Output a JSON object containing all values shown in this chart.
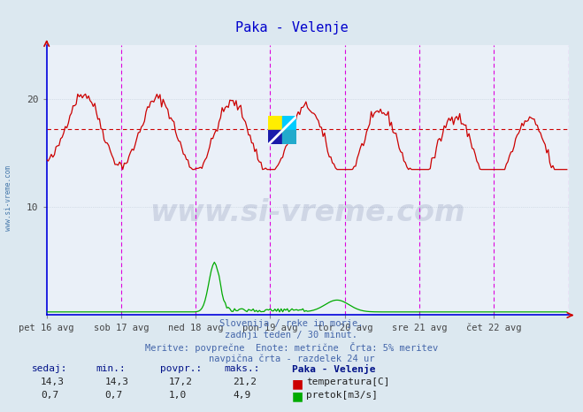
{
  "title": "Paka - Velenje",
  "title_color": "#0000cc",
  "bg_color": "#dce8f0",
  "plot_bg_color": "#eaf0f8",
  "xlabel_ticks": [
    "pet 16 avg",
    "sob 17 avg",
    "ned 18 avg",
    "pon 19 avg",
    "tor 20 avg",
    "sre 21 avg",
    "čet 22 avg"
  ],
  "temp_color": "#cc0000",
  "flow_color": "#00aa00",
  "avg_temp_line": 17.2,
  "grid_color": "#c0ccd8",
  "vline_color": "#dd00dd",
  "hline_color": "#cc0000",
  "axis_color": "#0000dd",
  "watermark_text": "www.si-vreme.com",
  "watermark_color": "#1a2a6a",
  "watermark_alpha": 0.13,
  "subtitle_lines": [
    "Slovenija / reke in morje.",
    "zadnji teden / 30 minut.",
    "Meritve: povprečne  Enote: metrične  Črta: 5% meritev",
    "navpična črta - razdelek 24 ur"
  ],
  "subtitle_color": "#4466aa",
  "table_header": [
    "sedaj:",
    "min.:",
    "povpr.:",
    "maks.:",
    "Paka - Velenje"
  ],
  "table_row1": [
    "14,3",
    "14,3",
    "17,2",
    "21,2"
  ],
  "table_row2": [
    "0,7",
    "0,7",
    "1,0",
    "4,9"
  ],
  "table_label1": "temperatura[C]",
  "table_label2": "pretok[m3/s]",
  "table_color": "#001188",
  "n_points": 336,
  "left_label": "www.si-vreme.com",
  "left_label_color": "#4477aa",
  "ymax": 25,
  "flow_max_display": 5.5,
  "temp_min": 14.0,
  "temp_max": 22.0
}
